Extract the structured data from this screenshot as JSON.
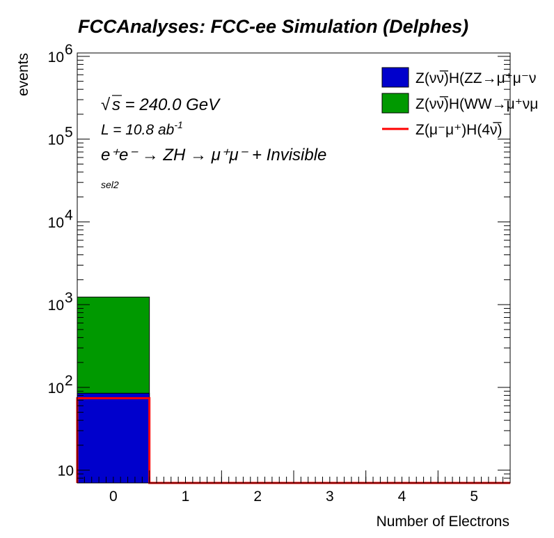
{
  "chart_data": {
    "type": "bar",
    "title": "FCCAnalyses: FCC-ee Simulation (Delphes)",
    "xlabel": "Number of Electrons",
    "ylabel": "events",
    "x_ticks": [
      "0",
      "1",
      "2",
      "3",
      "4",
      "5"
    ],
    "xlim": [
      -0.5,
      5.5
    ],
    "ylim": [
      7,
      1100000
    ],
    "log_y": true,
    "y_ticks": [
      {
        "value": 10,
        "base": "10",
        "exp": ""
      },
      {
        "value": 100,
        "base": "10",
        "exp": "2"
      },
      {
        "value": 1000,
        "base": "10",
        "exp": "3"
      },
      {
        "value": 10000,
        "base": "10",
        "exp": "4"
      },
      {
        "value": 100000,
        "base": "10",
        "exp": "5"
      },
      {
        "value": 1000000,
        "base": "10",
        "exp": "6"
      }
    ],
    "bin_edges": [
      -0.5,
      0.5,
      1.5,
      2.5,
      3.5,
      4.5,
      5.5
    ],
    "stacked_series": [
      {
        "name": "Z(νν̅)H(ZZ→μ⁺μ⁻ν",
        "color": "#0000cc",
        "values": [
          85,
          0,
          0,
          0,
          0,
          0
        ]
      },
      {
        "name": "Z(νν̅)H(WW→μ⁺νμ",
        "color": "#009900",
        "values": [
          1150,
          0,
          0,
          0,
          0,
          0
        ]
      }
    ],
    "line_series": [
      {
        "name": "Z(μ⁻μ⁺)H(4ν̅)",
        "color": "#ff0000",
        "values": [
          74,
          0,
          0,
          0,
          0,
          0
        ]
      }
    ],
    "legend_position": "top-right",
    "annotations": {
      "sqrt_s": "√s = 240.0 GeV",
      "sqrt_prefix": "√",
      "sqrt_body": "s = 240.0 GeV",
      "lumi_prefix": "L = 10.8 ab",
      "lumi_exp": "-1",
      "process": "e⁺e⁻ → ZH → μ⁺μ⁻ + Invisible",
      "selection": "sel2"
    }
  }
}
